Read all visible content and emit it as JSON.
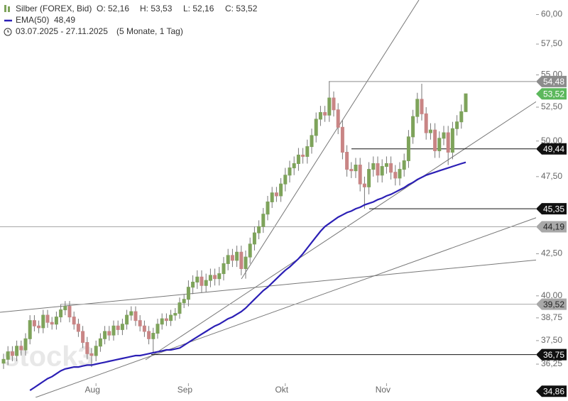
{
  "chart_data": {
    "type": "candlestick",
    "title": "Silber (FOREX, Bid)",
    "header_values": [
      "O: 52,16",
      "H: 53,53",
      "L: 52,16",
      "C: 53,52"
    ],
    "ema_value": "48,49",
    "period": "03.07.2025 - 27.11.2025",
    "period_note": "(5 Monate, 1 Tag)",
    "watermark": "stock3",
    "log_scale": true,
    "up_color": "#7ea35b",
    "down_color": "#c98585",
    "ylim": [
      34.55,
      61.27
    ],
    "yticks": [
      {
        "value": 36.25,
        "label": "36,25"
      },
      {
        "value": 37.5,
        "label": "37,50"
      },
      {
        "value": 38.75,
        "label": "38,75"
      },
      {
        "value": 40,
        "label": "40,00"
      },
      {
        "value": 42.5,
        "label": "42,50"
      },
      {
        "value": 47.5,
        "label": "47,50"
      },
      {
        "value": 50,
        "label": "50,00"
      },
      {
        "value": 52.5,
        "label": "52,50"
      },
      {
        "value": 55,
        "label": "55,00"
      },
      {
        "value": 57.5,
        "label": "57,50"
      },
      {
        "value": 60,
        "label": "60,00"
      }
    ],
    "categories": [
      null,
      null,
      null,
      null,
      null,
      null,
      null,
      null,
      null,
      null,
      null,
      null,
      null,
      null,
      null,
      null,
      null,
      null,
      null,
      null,
      null,
      "Aug",
      null,
      null,
      null,
      null,
      null,
      null,
      null,
      null,
      null,
      null,
      null,
      null,
      null,
      null,
      null,
      null,
      null,
      null,
      null,
      null,
      "Sep",
      null,
      null,
      null,
      null,
      null,
      null,
      null,
      null,
      null,
      null,
      null,
      null,
      null,
      null,
      null,
      null,
      null,
      null,
      null,
      null,
      null,
      "Okt",
      null,
      null,
      null,
      null,
      null,
      null,
      null,
      null,
      null,
      null,
      null,
      null,
      null,
      null,
      null,
      null,
      null,
      null,
      null,
      null,
      null,
      null,
      "Nov",
      null,
      null,
      null,
      null,
      null,
      null,
      null,
      null,
      null,
      null,
      null,
      null,
      null,
      null,
      null,
      null,
      null,
      null
    ],
    "open": [
      36.3,
      36.5,
      36.9,
      36.7,
      37.2,
      37.0,
      37.6,
      38.6,
      38.3,
      38.2,
      38.9,
      38.5,
      38.4,
      38.8,
      39.2,
      39.4,
      38.8,
      38.4,
      38.0,
      37.4,
      36.8,
      36.7,
      37.2,
      37.6,
      38.0,
      37.8,
      38.3,
      38.1,
      38.4,
      38.9,
      39.1,
      38.6,
      38.3,
      38.0,
      37.6,
      37.9,
      38.4,
      38.7,
      38.6,
      38.9,
      39.0,
      39.6,
      39.8,
      40.5,
      40.8,
      41.1,
      40.6,
      40.9,
      41.2,
      41.0,
      41.3,
      41.9,
      42.4,
      42.1,
      42.6,
      41.6,
      42.3,
      43.1,
      43.8,
      44.2,
      45.0,
      45.8,
      46.4,
      46.2,
      47.0,
      47.6,
      48.1,
      48.4,
      49.0,
      48.9,
      49.6,
      50.4,
      51.6,
      52.1,
      51.9,
      53.2,
      52.3,
      51.0,
      49.2,
      48.0,
      47.9,
      48.3,
      47.0,
      46.8,
      48.0,
      48.4,
      47.6,
      48.2,
      48.4,
      47.8,
      47.4,
      48.0,
      48.6,
      50.3,
      51.8,
      53.1,
      52.0,
      50.6,
      50.8,
      49.3,
      50.2,
      50.6,
      49.2,
      50.9,
      51.4,
      52.16
    ],
    "high": [
      36.8,
      37.2,
      37.2,
      37.5,
      37.5,
      37.9,
      38.9,
      38.9,
      38.6,
      39.2,
      39.2,
      38.8,
      39.1,
      39.5,
      39.7,
      39.7,
      39.1,
      38.7,
      38.3,
      37.7,
      37.1,
      37.5,
      37.9,
      38.3,
      38.3,
      38.6,
      38.6,
      38.7,
      39.2,
      39.4,
      39.4,
      38.9,
      38.6,
      38.3,
      38.2,
      38.7,
      39.0,
      39.0,
      39.2,
      39.3,
      39.9,
      40.1,
      40.9,
      41.2,
      41.5,
      41.5,
      41.3,
      41.6,
      41.6,
      41.7,
      42.3,
      42.8,
      42.8,
      43.0,
      43.0,
      42.7,
      43.5,
      44.2,
      44.6,
      45.4,
      46.2,
      46.8,
      46.8,
      47.4,
      48.1,
      48.6,
      48.9,
      49.5,
      49.5,
      50.1,
      50.9,
      52.1,
      52.6,
      52.6,
      54.48,
      53.7,
      52.8,
      51.5,
      49.7,
      48.5,
      48.8,
      48.8,
      47.5,
      48.5,
      48.9,
      48.9,
      48.7,
      48.9,
      48.9,
      48.3,
      48.5,
      49.1,
      50.8,
      52.3,
      53.6,
      54.3,
      52.5,
      51.3,
      51.3,
      50.7,
      51.1,
      51.1,
      51.4,
      51.9,
      52.7,
      53.53
    ],
    "low": [
      36.0,
      36.2,
      36.4,
      36.4,
      36.7,
      36.7,
      37.3,
      38.0,
      37.9,
      37.9,
      38.2,
      38.1,
      38.1,
      38.5,
      38.9,
      38.5,
      38.1,
      37.7,
      37.1,
      36.5,
      36.1,
      36.4,
      36.9,
      37.3,
      37.5,
      37.5,
      37.8,
      37.8,
      38.1,
      38.6,
      38.3,
      38.0,
      37.7,
      37.3,
      36.8,
      37.6,
      38.1,
      38.3,
      38.3,
      38.6,
      38.7,
      39.3,
      39.4,
      40.1,
      40.4,
      40.2,
      40.2,
      40.5,
      40.6,
      40.6,
      40.9,
      41.5,
      41.7,
      41.7,
      41.2,
      41.0,
      41.9,
      42.7,
      43.4,
      43.8,
      44.6,
      45.4,
      45.8,
      45.8,
      46.5,
      47.1,
      47.6,
      47.9,
      48.4,
      48.4,
      49.1,
      49.9,
      51.1,
      51.4,
      51.4,
      51.8,
      50.5,
      48.7,
      47.5,
      47.4,
      47.4,
      46.5,
      45.35,
      46.3,
      47.5,
      47.1,
      47.1,
      47.7,
      47.3,
      46.9,
      46.9,
      47.5,
      48.1,
      49.8,
      51.3,
      51.5,
      50.1,
      50.1,
      48.8,
      48.8,
      49.7,
      48.3,
      48.7,
      50.4,
      50.9,
      52.16
    ],
    "close": [
      36.5,
      36.9,
      36.7,
      37.2,
      37.0,
      37.6,
      38.6,
      38.3,
      38.2,
      38.9,
      38.5,
      38.4,
      38.8,
      39.2,
      39.4,
      38.8,
      38.4,
      38.0,
      37.4,
      36.8,
      36.7,
      37.2,
      37.6,
      38.0,
      37.8,
      38.3,
      38.1,
      38.4,
      38.9,
      39.1,
      38.6,
      38.3,
      38.0,
      37.6,
      37.9,
      38.4,
      38.7,
      38.6,
      38.9,
      39.0,
      39.6,
      39.8,
      40.5,
      40.8,
      41.1,
      40.6,
      40.9,
      41.2,
      41.0,
      41.3,
      41.9,
      42.4,
      42.1,
      42.6,
      41.6,
      42.3,
      43.1,
      43.8,
      44.2,
      45.0,
      45.8,
      46.4,
      46.2,
      47.0,
      47.6,
      48.1,
      48.4,
      49.0,
      48.9,
      49.6,
      50.4,
      51.6,
      52.1,
      51.9,
      53.2,
      52.3,
      51.0,
      49.2,
      48.0,
      47.9,
      48.3,
      47.0,
      46.8,
      48.0,
      48.4,
      47.6,
      48.2,
      48.4,
      47.8,
      47.4,
      48.0,
      48.6,
      50.3,
      51.8,
      53.1,
      52.0,
      50.6,
      50.8,
      49.3,
      50.2,
      50.6,
      49.2,
      50.9,
      51.4,
      52.16,
      53.52
    ],
    "series": [
      {
        "name": "EMA(50)",
        "color": "#2b1fb5",
        "values": [
          null,
          null,
          null,
          null,
          null,
          null,
          34.9,
          35.05,
          35.2,
          35.35,
          35.5,
          35.6,
          35.75,
          35.9,
          36.0,
          36.05,
          36.1,
          36.1,
          36.15,
          36.2,
          36.2,
          36.25,
          36.3,
          36.35,
          36.4,
          36.45,
          36.5,
          36.55,
          36.6,
          36.65,
          36.7,
          36.7,
          36.75,
          36.8,
          36.85,
          36.9,
          36.95,
          37.0,
          37.0,
          37.05,
          37.1,
          37.25,
          37.4,
          37.55,
          37.7,
          37.85,
          38.0,
          38.15,
          38.3,
          38.4,
          38.55,
          38.7,
          38.8,
          38.95,
          39.1,
          39.3,
          39.55,
          39.8,
          40.05,
          40.3,
          40.5,
          40.75,
          41.0,
          41.25,
          41.5,
          41.7,
          41.95,
          42.2,
          42.5,
          42.85,
          43.2,
          43.55,
          43.9,
          44.2,
          44.4,
          44.6,
          44.8,
          44.95,
          45.1,
          45.2,
          45.35,
          45.45,
          45.6,
          45.7,
          45.8,
          45.95,
          46.05,
          46.2,
          46.3,
          46.45,
          46.6,
          46.75,
          46.95,
          47.1,
          47.3,
          47.45,
          47.6,
          47.7,
          47.8,
          47.9,
          48.0,
          48.1,
          48.2,
          48.3,
          48.4,
          48.49
        ]
      }
    ],
    "levels": [
      {
        "value": 54.48,
        "label": "54,48",
        "color": "#8c8c8c"
      },
      {
        "value": 53.52,
        "label": "53,52",
        "color": "#5cb85c"
      },
      {
        "value": 49.44,
        "label": "49,44",
        "color": "#111111"
      },
      {
        "value": 45.35,
        "label": "45,35",
        "color": "#111111"
      },
      {
        "value": 44.19,
        "label": "44,19",
        "color": "#a8a8a8"
      },
      {
        "value": 39.52,
        "label": "39,52",
        "color": "#a8a8a8"
      },
      {
        "value": 36.75,
        "label": "36,75",
        "color": "#111111"
      },
      {
        "value": 34.86,
        "label": "34,86",
        "color": "#111111"
      }
    ]
  }
}
